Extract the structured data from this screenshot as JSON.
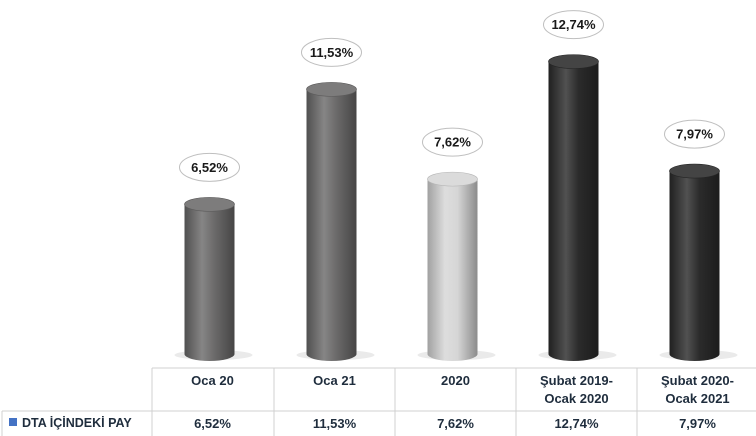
{
  "chart_data": {
    "type": "bar",
    "categories": [
      [
        "Oca 20"
      ],
      [
        "Oca 21"
      ],
      [
        "2020"
      ],
      [
        "Şubat 2019-",
        "Ocak 2020"
      ],
      [
        "Şubat 2020-",
        "Ocak 2021"
      ]
    ],
    "series": [
      {
        "name": "DTA İÇİNDEKİ PAY",
        "values": [
          6.52,
          11.53,
          7.62,
          12.74,
          7.97
        ],
        "labels": [
          "6,52%",
          "11,53%",
          "7,62%",
          "12,74%",
          "7,97%"
        ],
        "colors": [
          "#6b6a6a",
          "#6b6a6a",
          "#d6d6d6",
          "#2b2b2b",
          "#2b2b2b"
        ]
      }
    ],
    "ylim": [
      0,
      13
    ],
    "legend_color": "#4472c4",
    "grid": false,
    "legend_position": "data-table"
  }
}
